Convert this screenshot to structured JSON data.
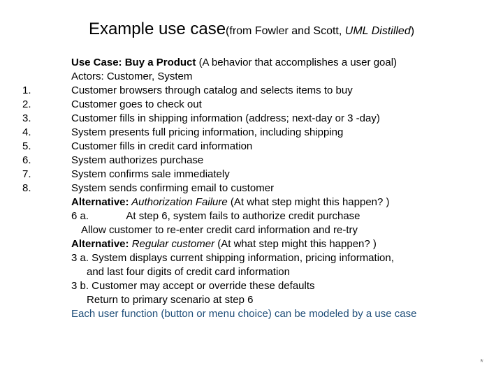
{
  "title": {
    "main": "Example use case",
    "sub_prefix": "(from Fowler and Scott, ",
    "sub_italic": "UML Distilled",
    "sub_suffix": ")"
  },
  "numbers": [
    "1.",
    "2.",
    "3.",
    "4.",
    "5.",
    "6.",
    "7.",
    "8."
  ],
  "lines": {
    "usecase_label": "Use Case: Buy a Product ",
    "usecase_tail": "(A behavior that accomplishes a user goal)",
    "actors": "Actors: Customer, System",
    "s1": "Customer browsers through catalog and selects items to buy",
    "s2": "Customer goes to check out",
    "s3": "Customer fills in shipping information (address; next-day or 3 -day)",
    "s4": "System presents full pricing information, including shipping",
    "s5": "Customer fills in credit card information",
    "s6": "System authorizes purchase",
    "s7": "System confirms sale immediately",
    "s8": "System sends confirming email to customer",
    "alt1_label": "Alternative:",
    "alt1_name": " Authorization Failure ",
    "alt1_tail": " (At what step might this happen? )",
    "alt1_6a": "6 a.             At step 6, system fails to authorize credit purchase",
    "alt1_allow": "Allow customer to re-enter credit card information and re-try",
    "alt2_label": "Alternative:",
    "alt2_name": " Regular customer",
    "alt2_tail": " (At what step might this happen? )",
    "alt2_3a": "3 a. System displays current shipping information, pricing information,",
    "alt2_3a2": "and last four digits of credit card information",
    "alt2_3b": "3 b. Customer may accept or override these defaults",
    "alt2_return": "Return to primary scenario at step 6",
    "footer": "Each user function (button or menu choice) can be modeled by a use case"
  },
  "asterisk": "*",
  "colors": {
    "blue": "#1f4e79",
    "text": "#000000",
    "background": "#ffffff"
  }
}
